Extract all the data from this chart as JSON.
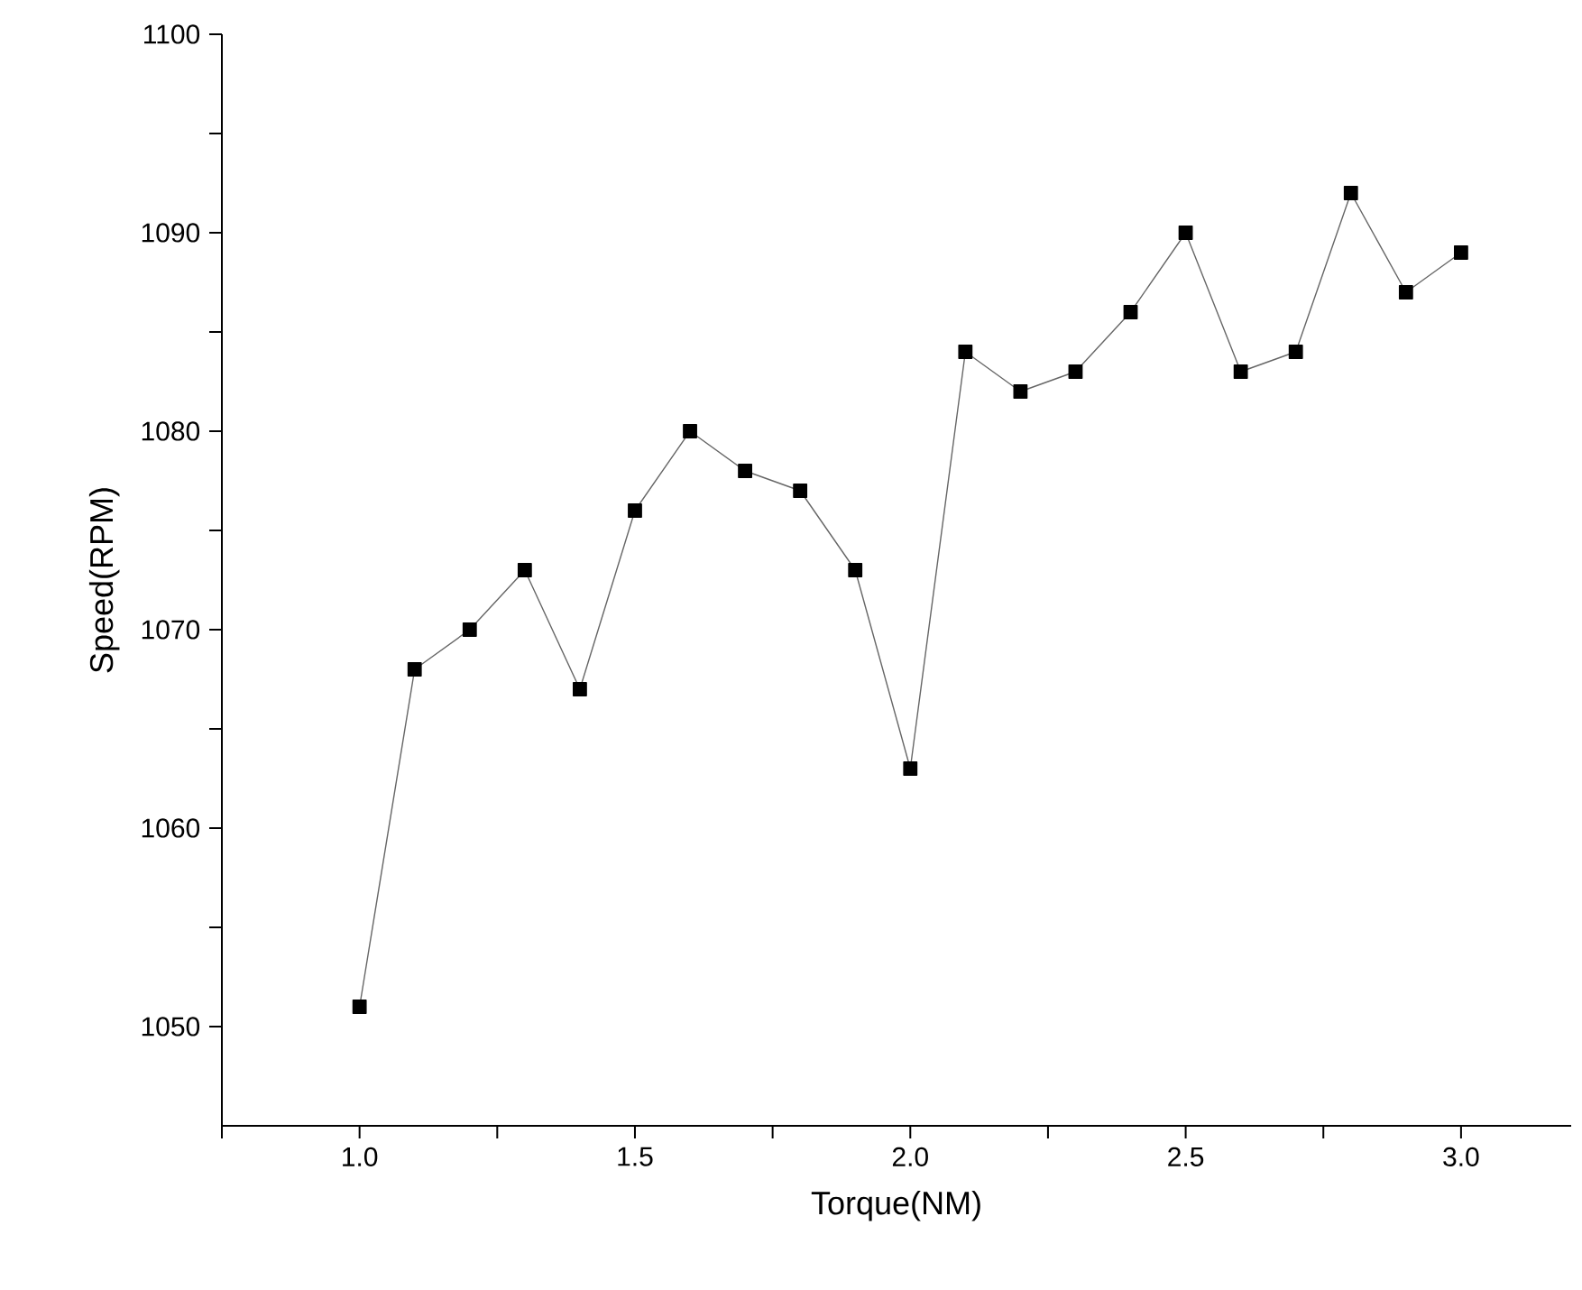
{
  "chart_data": {
    "type": "line",
    "xlabel": "Torque(NM)",
    "ylabel": "Speed(RPM)",
    "x": [
      1.0,
      1.1,
      1.2,
      1.3,
      1.4,
      1.5,
      1.6,
      1.7,
      1.8,
      1.9,
      2.0,
      2.1,
      2.2,
      2.3,
      2.4,
      2.5,
      2.6,
      2.7,
      2.8,
      2.9,
      3.0
    ],
    "series": [
      {
        "color": "#000000",
        "values": [
          1051,
          1068,
          1070,
          1073,
          1067,
          1076,
          1080,
          1078,
          1077,
          1073,
          1063,
          1084,
          1082,
          1083,
          1086,
          1090,
          1083,
          1084,
          1092,
          1087,
          1089
        ]
      }
    ],
    "xlim": [
      0.75,
      3.2
    ],
    "ylim": [
      1045,
      1100
    ],
    "xticks": [
      {
        "value": 0.75,
        "label": null
      },
      {
        "value": 1.0,
        "label": "1.0"
      },
      {
        "value": 1.25,
        "label": null
      },
      {
        "value": 1.5,
        "label": "1.5"
      },
      {
        "value": 1.75,
        "label": null
      },
      {
        "value": 2.0,
        "label": "2.0"
      },
      {
        "value": 2.25,
        "label": null
      },
      {
        "value": 2.5,
        "label": "2.5"
      },
      {
        "value": 2.75,
        "label": null
      },
      {
        "value": 3.0,
        "label": "3.0"
      }
    ],
    "yticks": [
      1050,
      {
        "value": 1055,
        "label": null
      },
      1060,
      {
        "value": 1065,
        "label": null
      },
      1070,
      {
        "value": 1075,
        "label": null
      },
      1080,
      {
        "value": 1085,
        "label": null
      },
      1090,
      {
        "value": 1095,
        "label": null
      },
      1100
    ],
    "marker": "square",
    "line_style": "solid"
  }
}
